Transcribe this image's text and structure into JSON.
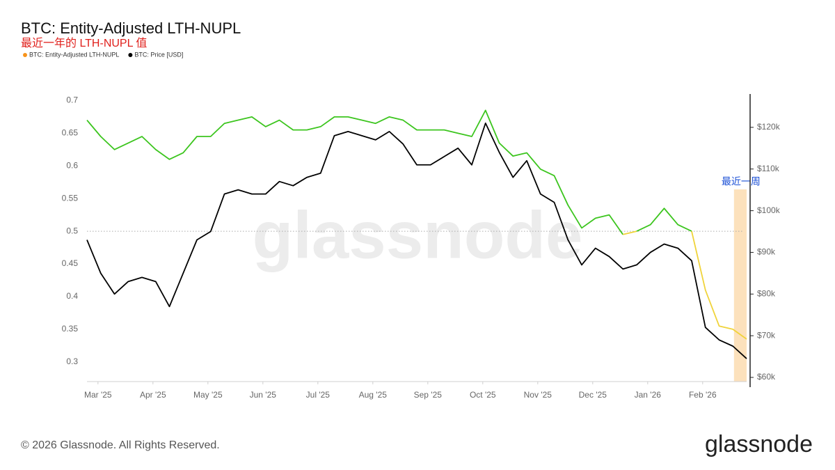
{
  "chart_data": {
    "type": "line",
    "title": "BTC: Entity-Adjusted LTH-NUPL",
    "subtitle": "最近一年的 LTH-NUPL 值",
    "watermark": "glassnode",
    "footer": "© 2026 Glassnode. All Rights Reserved.",
    "logo": "glassnode",
    "x": [
      -0.2,
      0.05,
      0.3,
      0.55,
      0.8,
      1.05,
      1.3,
      1.55,
      1.8,
      2.05,
      2.3,
      2.55,
      2.8,
      3.05,
      3.3,
      3.55,
      3.8,
      4.05,
      4.3,
      4.55,
      4.8,
      5.05,
      5.3,
      5.55,
      5.8,
      6.05,
      6.3,
      6.55,
      6.8,
      7.05,
      7.3,
      7.55,
      7.8,
      8.05,
      8.3,
      8.55,
      8.8,
      9.05,
      9.3,
      9.55,
      9.8,
      10.05,
      10.3,
      10.55,
      10.8,
      11.05,
      11.3,
      11.55,
      11.8
    ],
    "xlim": [
      -0.2,
      11.8
    ],
    "xticks": [
      {
        "value": 0,
        "label": "Mar '25"
      },
      {
        "value": 1,
        "label": "Apr '25"
      },
      {
        "value": 2,
        "label": "May '25"
      },
      {
        "value": 3,
        "label": "Jun '25"
      },
      {
        "value": 4,
        "label": "Jul '25"
      },
      {
        "value": 5,
        "label": "Aug '25"
      },
      {
        "value": 6,
        "label": "Sep '25"
      },
      {
        "value": 7,
        "label": "Oct '25"
      },
      {
        "value": 8,
        "label": "Nov '25"
      },
      {
        "value": 9,
        "label": "Dec '25"
      },
      {
        "value": 10,
        "label": "Jan '26"
      },
      {
        "value": 11,
        "label": "Feb '26"
      }
    ],
    "ylim": [
      0.27,
      0.71
    ],
    "yticks": [
      0.3,
      0.35,
      0.4,
      0.45,
      0.5,
      0.55,
      0.6,
      0.65,
      0.7
    ],
    "y2lim": [
      59000,
      128000
    ],
    "y2ticks": [
      {
        "value": 60000,
        "label": "$60k"
      },
      {
        "value": 70000,
        "label": "$70k"
      },
      {
        "value": 80000,
        "label": "$80k"
      },
      {
        "value": 90000,
        "label": "$90k"
      },
      {
        "value": 100000,
        "label": "$100k"
      },
      {
        "value": 110000,
        "label": "$110k"
      },
      {
        "value": 120000,
        "label": "$120k"
      }
    ],
    "grid": false,
    "threshold": 0.5,
    "line_colors": {
      "above": "#3cc51e",
      "below": "#f0d33a"
    },
    "highlight": {
      "xlim": [
        11.57,
        11.8
      ],
      "label": "最近一周",
      "color": "#fbdcb0"
    },
    "series": [
      {
        "name": "BTC: Entity-Adjusted LTH-NUPL",
        "color": "#f7931a",
        "values": [
          0.67,
          0.645,
          0.625,
          0.635,
          0.645,
          0.625,
          0.61,
          0.62,
          0.645,
          0.645,
          0.665,
          0.67,
          0.675,
          0.66,
          0.67,
          0.655,
          0.655,
          0.66,
          0.675,
          0.675,
          0.67,
          0.665,
          0.675,
          0.67,
          0.655,
          0.655,
          0.655,
          0.65,
          0.645,
          0.685,
          0.635,
          0.615,
          0.62,
          0.595,
          0.585,
          0.54,
          0.505,
          0.52,
          0.525,
          0.495,
          0.5,
          0.51,
          0.535,
          0.51,
          0.5,
          0.41,
          0.355,
          0.35,
          0.335
        ]
      },
      {
        "name": "BTC: Price [USD]",
        "color": "#000000",
        "axis": "y2",
        "values": [
          93000,
          85000,
          80000,
          83000,
          84000,
          83000,
          77000,
          85000,
          93000,
          95000,
          104000,
          105000,
          104000,
          104000,
          107000,
          106000,
          108000,
          109000,
          118000,
          119000,
          118000,
          117000,
          119000,
          116000,
          111000,
          111000,
          113000,
          115000,
          111000,
          121000,
          114000,
          108000,
          112000,
          104000,
          102000,
          93000,
          87000,
          91000,
          89000,
          86000,
          87000,
          90000,
          92000,
          91000,
          88000,
          72000,
          69000,
          67500,
          64500
        ]
      }
    ]
  }
}
